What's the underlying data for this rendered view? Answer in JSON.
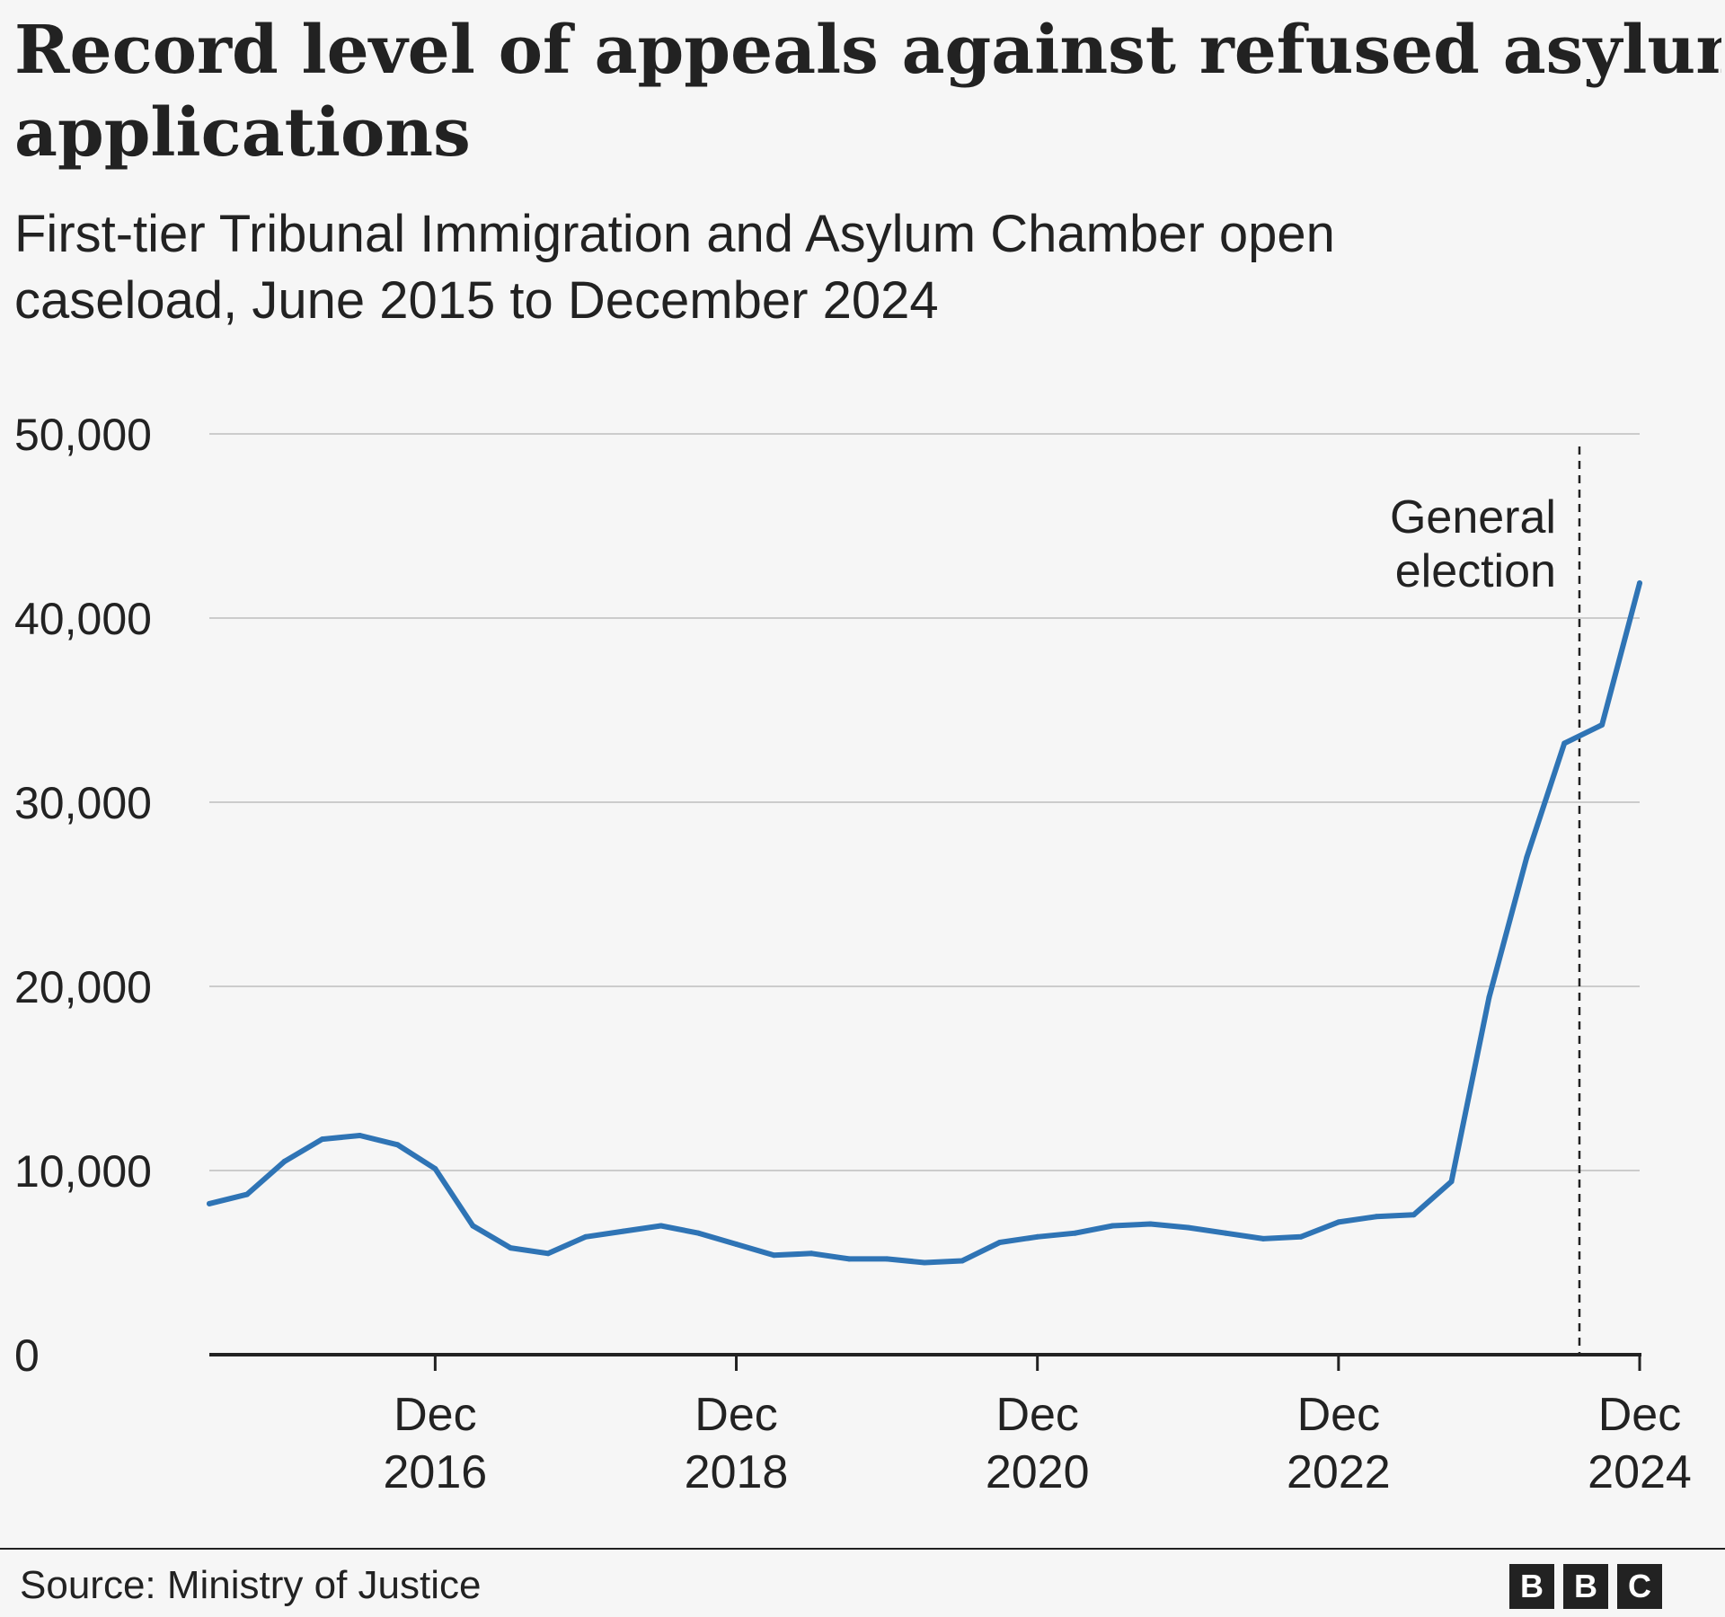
{
  "header": {
    "title_line1": "Record level of appeals against refused asylum",
    "title_line2": "applications",
    "subtitle_line1": "First-tier Tribunal Immigration and Asylum Chamber open",
    "subtitle_line2": "caseload, June 2015 to December 2024"
  },
  "footer": {
    "source": "Source: Ministry of Justice",
    "logo_letters": [
      "B",
      "B",
      "C"
    ]
  },
  "colors": {
    "background": "#f6f6f6",
    "line": "#2f74b5",
    "gridline": "#cccccc",
    "axis": "#222222",
    "text": "#222222"
  },
  "chart_data": {
    "type": "line",
    "title": "Record level of appeals against refused asylum applications",
    "subtitle": "First-tier Tribunal Immigration and Asylum Chamber open caseload, June 2015 to December 2024",
    "xlabel": "",
    "ylabel": "",
    "xlim": [
      2015.5,
      2025.0
    ],
    "ylim": [
      0,
      50000
    ],
    "grid": true,
    "y_ticks": [
      0,
      10000,
      20000,
      30000,
      40000,
      50000
    ],
    "y_tick_labels": [
      "0",
      "10,000",
      "20,000",
      "30,000",
      "40,000",
      "50,000"
    ],
    "x_ticks": [
      {
        "x": 2017.0,
        "line1": "Dec",
        "line2": "2016"
      },
      {
        "x": 2019.0,
        "line1": "Dec",
        "line2": "2018"
      },
      {
        "x": 2021.0,
        "line1": "Dec",
        "line2": "2020"
      },
      {
        "x": 2023.0,
        "line1": "Dec",
        "line2": "2022"
      },
      {
        "x": 2025.0,
        "line1": "Dec",
        "line2": "2024"
      }
    ],
    "series": [
      {
        "name": "Open caseload",
        "x": [
          2015.5,
          2015.75,
          2016.0,
          2016.25,
          2016.5,
          2016.75,
          2017.0,
          2017.25,
          2017.5,
          2017.75,
          2018.0,
          2018.25,
          2018.5,
          2018.75,
          2019.0,
          2019.25,
          2019.5,
          2019.75,
          2020.0,
          2020.25,
          2020.5,
          2020.75,
          2021.0,
          2021.25,
          2021.5,
          2021.75,
          2022.0,
          2022.25,
          2022.5,
          2022.75,
          2023.0,
          2023.25,
          2023.5,
          2023.75,
          2024.0,
          2024.25,
          2024.5,
          2024.75,
          2025.0
        ],
        "values": [
          8200,
          8700,
          10500,
          11700,
          11900,
          11400,
          10100,
          7000,
          5800,
          5500,
          6400,
          6700,
          7000,
          6600,
          6000,
          5400,
          5500,
          5200,
          5200,
          5000,
          5100,
          6100,
          6400,
          6600,
          7000,
          7100,
          6900,
          6600,
          6300,
          6400,
          7200,
          7500,
          7600,
          9400,
          19400,
          27000,
          33200,
          34200,
          41900
        ]
      }
    ],
    "annotations": [
      {
        "x": 2024.6,
        "line1": "General",
        "line2": "election",
        "style": "dashed-vertical"
      }
    ]
  }
}
